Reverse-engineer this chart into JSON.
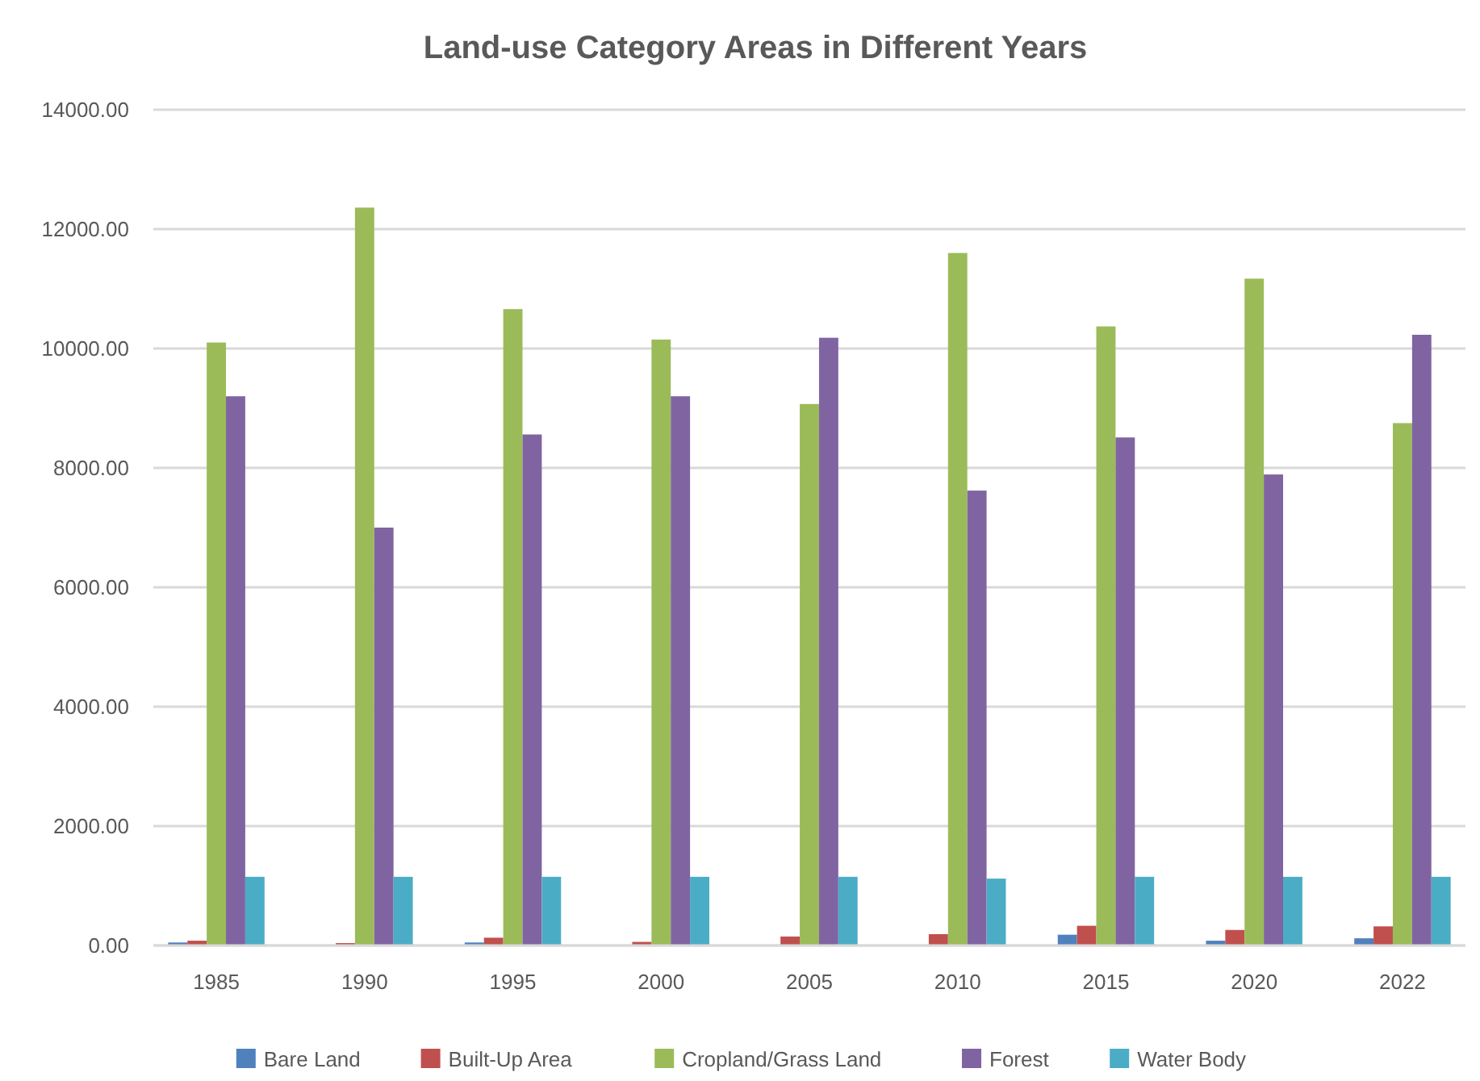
{
  "chart_data": {
    "type": "bar",
    "title": "Land-use Category Areas in Different Years",
    "categories": [
      "1985",
      "1990",
      "1995",
      "2000",
      "2005",
      "2010",
      "2015",
      "2020",
      "2022"
    ],
    "series": [
      {
        "name": "Bare Land",
        "color": "#4f81bd",
        "values": [
          50,
          null,
          50,
          null,
          null,
          null,
          180,
          80,
          120
        ]
      },
      {
        "name": "Built-Up Area",
        "color": "#c0504d",
        "values": [
          80,
          40,
          130,
          60,
          150,
          190,
          330,
          260,
          320
        ]
      },
      {
        "name": "Cropland/Grass Land",
        "color": "#9bbb59",
        "values": [
          10100,
          12360,
          10660,
          10150,
          9070,
          11600,
          10370,
          11170,
          8750
        ]
      },
      {
        "name": "Forest",
        "color": "#8064a2",
        "values": [
          9200,
          7000,
          8560,
          9200,
          10180,
          7620,
          8510,
          7890,
          10230
        ]
      },
      {
        "name": "Water Body",
        "color": "#4bacc6",
        "values": [
          1150,
          1150,
          1150,
          1150,
          1150,
          1120,
          1150,
          1150,
          1150
        ]
      }
    ],
    "ylim": [
      0,
      14000
    ],
    "yticks": [
      {
        "value": 0,
        "label": "0.00"
      },
      {
        "value": 2000,
        "label": "2000.00"
      },
      {
        "value": 4000,
        "label": "4000.00"
      },
      {
        "value": 6000,
        "label": "6000.00"
      },
      {
        "value": 8000,
        "label": "8000.00"
      },
      {
        "value": 10000,
        "label": "10000.00"
      },
      {
        "value": 12000,
        "label": "12000.00"
      },
      {
        "value": 14000,
        "label": "14000.00"
      }
    ],
    "grid": "y",
    "legend": "bottom"
  }
}
